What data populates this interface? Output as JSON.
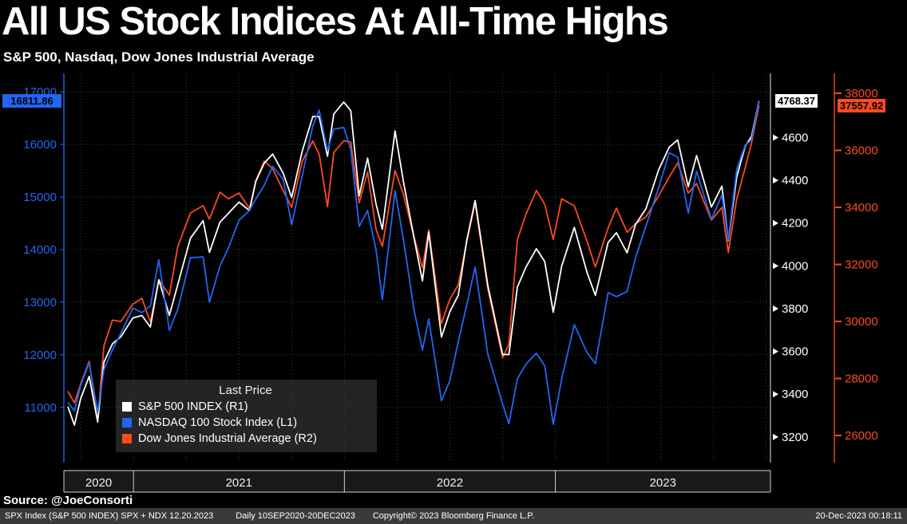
{
  "header": {
    "title": "All US Stock Indices At All-Time Highs",
    "subtitle": "S&P 500, Nasdaq, Dow Jones Industrial Average"
  },
  "legend": {
    "title": "Last Price"
  },
  "source_line": "Source:  @JoeConsorti",
  "status_bar": {
    "left_a": "SPX Index (S&P 500 INDEX) SPX + NDX 12.20.2023",
    "left_b": "Daily 10SEP2020-20DEC2023",
    "center": "Copyright© 2023 Bloomberg Finance L.P.",
    "right": "20-Dec-2023 00:18:11"
  },
  "chart_data": {
    "type": "line",
    "title": "All US Stock Indices At All-Time Highs",
    "subtitle": "S&P 500, Nasdaq, Dow Jones Industrial Average",
    "frequency": "Daily",
    "date_range": "10SEP2020-20DEC2023",
    "grid": "dotted",
    "legend_position": "bottom-left",
    "x": [
      2020.69,
      2020.72,
      2020.75,
      2020.79,
      2020.83,
      2020.86,
      2020.9,
      2020.94,
      2020.997,
      2021.04,
      2021.08,
      2021.12,
      2021.17,
      2021.21,
      2021.27,
      2021.33,
      2021.36,
      2021.41,
      2021.45,
      2021.5,
      2021.55,
      2021.58,
      2021.62,
      2021.66,
      2021.71,
      2021.75,
      2021.8,
      2021.85,
      2021.88,
      2021.92,
      2021.95,
      2021.997,
      2022.03,
      2022.07,
      2022.11,
      2022.15,
      2022.18,
      2022.24,
      2022.28,
      2022.33,
      2022.37,
      2022.4,
      2022.46,
      2022.5,
      2022.54,
      2022.58,
      2022.62,
      2022.68,
      2022.75,
      2022.78,
      2022.82,
      2022.86,
      2022.91,
      2022.95,
      2022.99,
      2023.03,
      2023.09,
      2023.15,
      2023.19,
      2023.25,
      2023.29,
      2023.34,
      2023.38,
      2023.43,
      2023.49,
      2023.54,
      2023.58,
      2023.63,
      2023.67,
      2023.74,
      2023.79,
      2023.82,
      2023.86,
      2023.9,
      2023.93,
      2023.965
    ],
    "series": [
      {
        "name": "S&P 500 INDEX",
        "legend": "S&P 500 INDEX  (R1)",
        "axis": "right1",
        "color": "#ffffff",
        "last_price": 4768.37,
        "last_price_label": "4768.37",
        "values": [
          3339,
          3255,
          3380,
          3483,
          3270,
          3550,
          3635,
          3668,
          3756,
          3768,
          3714,
          3935,
          3768,
          3913,
          4129,
          4211,
          4063,
          4204,
          4246,
          4298,
          4258,
          4395,
          4480,
          4523,
          4433,
          4320,
          4536,
          4698,
          4698,
          4513,
          4710,
          4766,
          4726,
          4327,
          4504,
          4289,
          4171,
          4631,
          4393,
          4132,
          3930,
          4158,
          3667,
          3785,
          3863,
          4119,
          4305,
          3908,
          3586,
          3585,
          3901,
          3993,
          4080,
          4020,
          3783,
          3999,
          4180,
          3970,
          3862,
          4109,
          4155,
          4061,
          4192,
          4268,
          4450,
          4555,
          4589,
          4370,
          4516,
          4275,
          4373,
          4117,
          4415,
          4559,
          4604,
          4768.37
        ]
      },
      {
        "name": "NASDAQ 100 Stock Index",
        "legend": "NASDAQ 100 Stock Index  (L1)",
        "axis": "left",
        "color": "#2166f3",
        "last_price": 16811.86,
        "last_price_label": "16811.86",
        "values": [
          11087,
          10936,
          11418,
          11852,
          10911,
          11713,
          12094,
          12405,
          12888,
          12803,
          12925,
          13807,
          12464,
          12867,
          13845,
          13860,
          13002,
          13686,
          14030,
          14555,
          14746,
          14960,
          15225,
          15582,
          15334,
          14472,
          15399,
          16350,
          16650,
          15877,
          16290,
          16320,
          15905,
          14438,
          14740,
          13995,
          13048,
          15120,
          14191,
          12855,
          12088,
          12681,
          11127,
          11504,
          12248,
          12949,
          13667,
          12011,
          11066,
          10692,
          11546,
          11817,
          12030,
          11787,
          10679,
          11541,
          12573,
          12042,
          11830,
          13181,
          13105,
          13201,
          13841,
          14450,
          15179,
          15841,
          15757,
          14695,
          15491,
          14572,
          15040,
          14180,
          15529,
          15982,
          16085,
          16811.86
        ]
      },
      {
        "name": "Dow Jones Industrial Average",
        "legend": "Dow Jones Industrial Average  (R2)",
        "axis": "right2",
        "color": "#fb4b1c",
        "last_price": 37557.92,
        "last_price_label": "37557.92",
        "values": [
          27535,
          27148,
          27817,
          28606,
          26502,
          29158,
          30046,
          29999,
          30606,
          30814,
          29983,
          31458,
          30924,
          32628,
          33801,
          34060,
          33587,
          34529,
          34299,
          34503,
          33962,
          34935,
          35625,
          35361,
          34585,
          34000,
          35609,
          36328,
          35870,
          34022,
          35927,
          36338,
          36290,
          34160,
          35242,
          33224,
          32633,
          35294,
          34451,
          32977,
          31880,
          33213,
          29927,
          30775,
          31288,
          32798,
          34152,
          31145,
          28726,
          29200,
          32862,
          33748,
          34590,
          34108,
          32875,
          34303,
          34054,
          32817,
          31910,
          33274,
          33977,
          33128,
          33427,
          33665,
          34408,
          35061,
          35560,
          34501,
          34838,
          33550,
          33997,
          32417,
          34283,
          35390,
          36248,
          37557.92
        ]
      }
    ],
    "axes": {
      "left": {
        "ticks": [
          11000,
          12000,
          13000,
          14000,
          15000,
          16000,
          17000
        ],
        "range": [
          9950,
          17350
        ],
        "color": "#2166f3"
      },
      "right1": {
        "ticks": [
          3200,
          3400,
          3600,
          3800,
          4000,
          4200,
          4400,
          4600
        ],
        "range": [
          3080,
          4900
        ],
        "color": "#ffffff"
      },
      "right2": {
        "ticks": [
          26000,
          28000,
          30000,
          32000,
          34000,
          36000,
          38000
        ],
        "range": [
          25050,
          38700
        ],
        "color": "#fb4b1c"
      },
      "x": {
        "labels": [
          "2020",
          "2021",
          "2022",
          "2023"
        ],
        "boundaries": [
          2020.67,
          2021,
          2022,
          2023,
          2024.02
        ],
        "range": [
          2020.67,
          2024.02
        ]
      }
    }
  }
}
